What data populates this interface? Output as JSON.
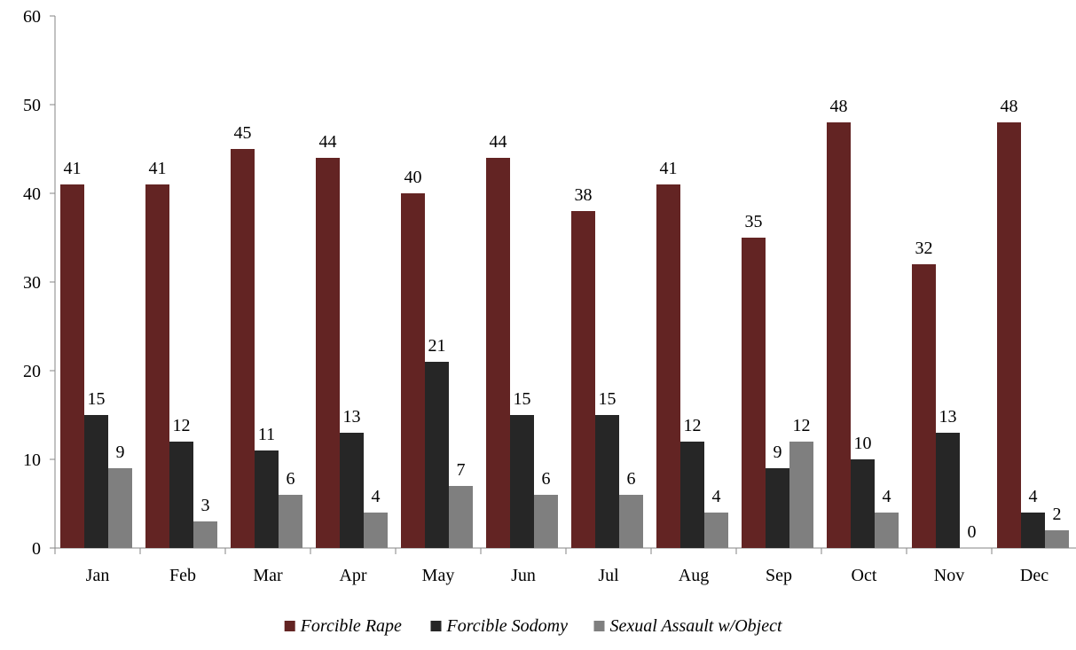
{
  "chart_data": {
    "type": "bar",
    "categories": [
      "Jan",
      "Feb",
      "Mar",
      "Apr",
      "May",
      "Jun",
      "Jul",
      "Aug",
      "Sep",
      "Oct",
      "Nov",
      "Dec"
    ],
    "series": [
      {
        "name": "Forcible Rape",
        "color": "#632423",
        "values": [
          41,
          41,
          45,
          44,
          40,
          44,
          38,
          41,
          35,
          48,
          32,
          48
        ]
      },
      {
        "name": "Forcible Sodomy",
        "color": "#262626",
        "values": [
          15,
          12,
          11,
          13,
          21,
          15,
          15,
          12,
          9,
          10,
          13,
          4
        ]
      },
      {
        "name": "Sexual Assault w/Object",
        "color": "#7f7f7f",
        "values": [
          9,
          3,
          6,
          4,
          7,
          6,
          6,
          4,
          12,
          4,
          0,
          2
        ]
      }
    ],
    "ylim": [
      0,
      60
    ],
    "yticks": [
      0,
      10,
      20,
      30,
      40,
      50,
      60
    ],
    "grid": false,
    "legend": "bottom-center",
    "data_labels": true
  }
}
